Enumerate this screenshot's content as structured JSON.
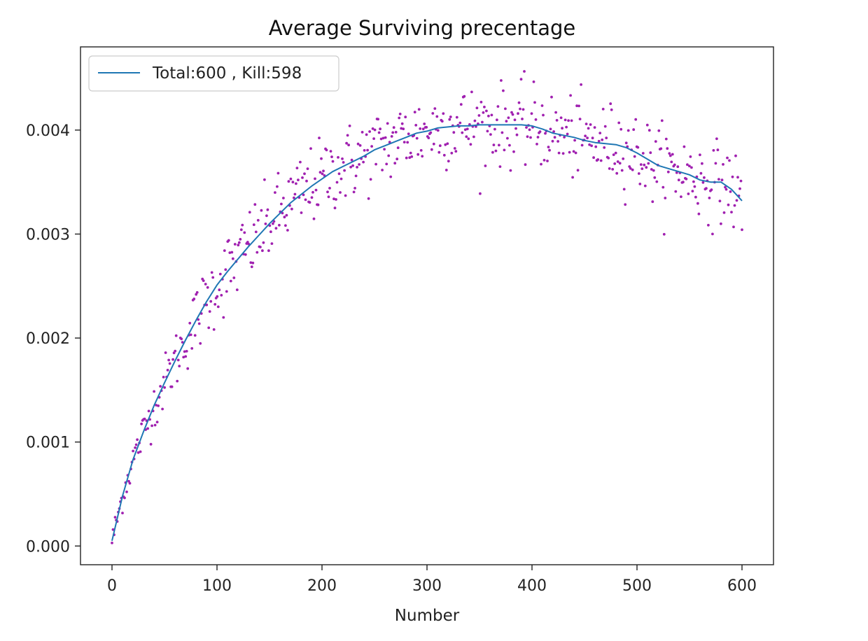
{
  "chart_data": {
    "type": "scatter",
    "title": "Average Surviving precentage",
    "xlabel": "Number",
    "ylabel": "",
    "xlim": [
      -30,
      630
    ],
    "ylim": [
      -0.00018,
      0.0048
    ],
    "xticks": [
      0,
      100,
      200,
      300,
      400,
      500,
      600
    ],
    "xtick_labels": [
      "0",
      "100",
      "200",
      "300",
      "400",
      "500",
      "600"
    ],
    "yticks": [
      0.0,
      0.001,
      0.002,
      0.003,
      0.004
    ],
    "ytick_labels": [
      "0.000",
      "0.001",
      "0.002",
      "0.003",
      "0.004"
    ],
    "grid": false,
    "legend_position": "top-left",
    "series": [
      {
        "name": "Total:600 , Kill:598",
        "kind": "line",
        "color": "#1f77b4",
        "x": [
          0,
          10,
          20,
          30,
          40,
          50,
          60,
          70,
          80,
          90,
          100,
          110,
          120,
          130,
          140,
          150,
          160,
          170,
          180,
          190,
          200,
          210,
          220,
          230,
          240,
          250,
          260,
          270,
          280,
          290,
          300,
          310,
          320,
          330,
          340,
          350,
          360,
          370,
          380,
          390,
          400,
          410,
          420,
          430,
          440,
          450,
          460,
          470,
          480,
          490,
          500,
          510,
          520,
          530,
          540,
          550,
          560,
          570,
          580,
          590,
          600
        ],
        "y": [
          5e-05,
          0.00048,
          0.00083,
          0.0011,
          0.00135,
          0.00157,
          0.00178,
          0.00198,
          0.00217,
          0.00235,
          0.00251,
          0.00264,
          0.00276,
          0.00288,
          0.00299,
          0.0031,
          0.0032,
          0.0033,
          0.00338,
          0.00346,
          0.00353,
          0.0036,
          0.00365,
          0.0037,
          0.00375,
          0.00381,
          0.00385,
          0.00389,
          0.00393,
          0.00397,
          0.00399,
          0.00402,
          0.00403,
          0.00404,
          0.00404,
          0.00405,
          0.00405,
          0.00405,
          0.00405,
          0.00405,
          0.00404,
          0.00401,
          0.00397,
          0.00395,
          0.00393,
          0.0039,
          0.00388,
          0.00387,
          0.00386,
          0.00383,
          0.00378,
          0.00372,
          0.00366,
          0.00363,
          0.0036,
          0.00357,
          0.00352,
          0.0035,
          0.0035,
          0.00343,
          0.00332
        ]
      },
      {
        "name": "",
        "kind": "scatter",
        "color": "#a020b0",
        "approx_points": 600,
        "noise_sd_approx": 0.00019
      }
    ]
  }
}
